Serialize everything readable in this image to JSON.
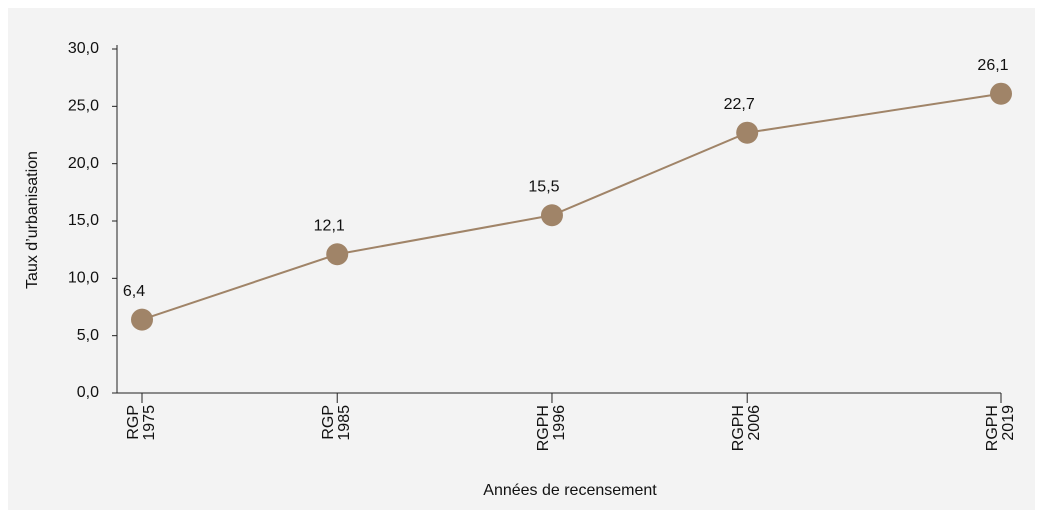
{
  "chart_data": {
    "type": "line",
    "y_label": "Taux d’urbanisation",
    "x_label": "Années de recensement",
    "categories": [
      "RGP 1975",
      "RGP 1985",
      "RGPH 1996",
      "RGPH 2006",
      "RGPH 2019"
    ],
    "values": [
      6.4,
      12.1,
      15.5,
      22.7,
      26.1
    ],
    "value_labels": [
      "6,4",
      "12,1",
      "15,5",
      "22,7",
      "26,1"
    ],
    "color": "#a08468",
    "ylim": [
      0,
      30
    ],
    "yticks": [
      {
        "value": 0,
        "label": "0,0"
      },
      {
        "value": 5,
        "label": "5,0"
      },
      {
        "value": 10,
        "label": "10,0"
      },
      {
        "value": 15,
        "label": "15,0"
      },
      {
        "value": 20,
        "label": "20,0"
      },
      {
        "value": 25,
        "label": "25,0"
      },
      {
        "value": 30,
        "label": "30,0"
      }
    ]
  }
}
